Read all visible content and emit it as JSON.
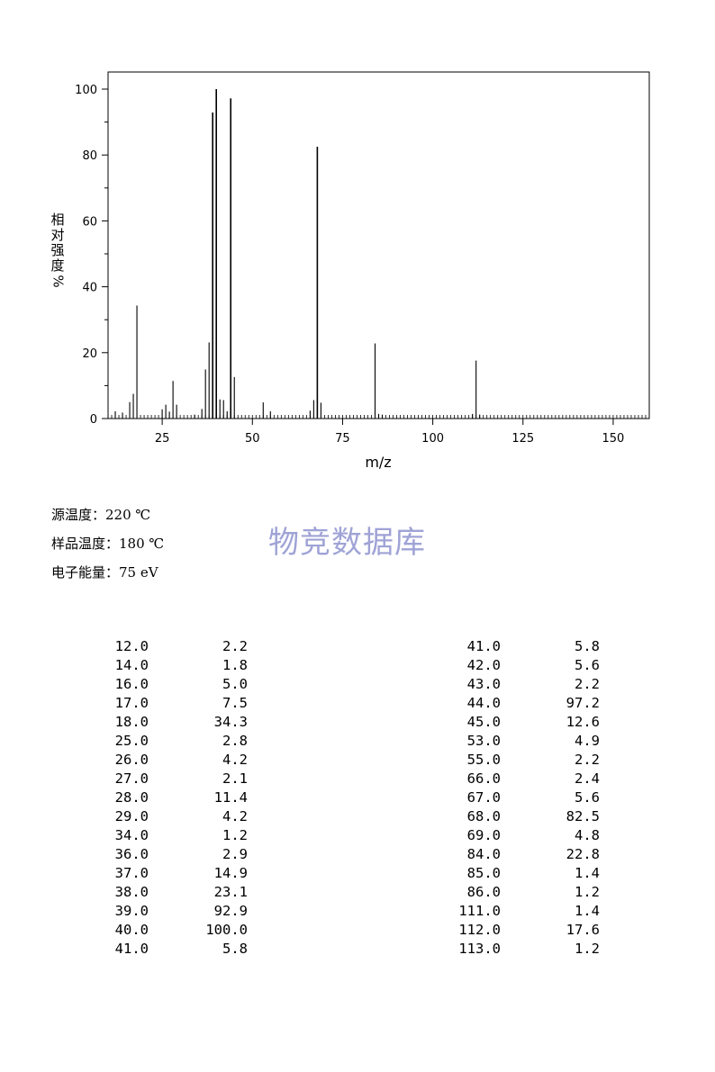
{
  "chart_data": {
    "type": "bar",
    "xlabel": "m/z",
    "ylabel_chars": [
      "相",
      "对",
      "强",
      "度"
    ],
    "ylabel_unit": "%",
    "xlim": [
      10,
      160
    ],
    "ylim": [
      0,
      105
    ],
    "xticks": [
      25,
      50,
      75,
      100,
      125,
      150
    ],
    "yticks": [
      0,
      20,
      40,
      60,
      80,
      100
    ],
    "peaks": [
      [
        12,
        2.2
      ],
      [
        14,
        1.8
      ],
      [
        16,
        5.0
      ],
      [
        17,
        7.5
      ],
      [
        18,
        34.3
      ],
      [
        25,
        2.8
      ],
      [
        26,
        4.2
      ],
      [
        27,
        2.1
      ],
      [
        28,
        11.4
      ],
      [
        29,
        4.2
      ],
      [
        34,
        1.2
      ],
      [
        36,
        2.9
      ],
      [
        37,
        14.9
      ],
      [
        38,
        23.1
      ],
      [
        39,
        92.9
      ],
      [
        40,
        100.0
      ],
      [
        41,
        5.8
      ],
      [
        42,
        5.6
      ],
      [
        43,
        2.2
      ],
      [
        44,
        97.2
      ],
      [
        45,
        12.6
      ],
      [
        53,
        4.9
      ],
      [
        55,
        2.2
      ],
      [
        66,
        2.4
      ],
      [
        67,
        5.6
      ],
      [
        68,
        82.5
      ],
      [
        69,
        4.8
      ],
      [
        84,
        22.8
      ],
      [
        85,
        1.4
      ],
      [
        86,
        1.2
      ],
      [
        111,
        1.4
      ],
      [
        112,
        17.6
      ],
      [
        113,
        1.2
      ]
    ]
  },
  "conditions": {
    "source_temp": "源温度：220 ℃",
    "sample_temp": "样品温度：180 ℃",
    "electron_energy": "电子能量：75 eV"
  },
  "watermark": "物竞数据库",
  "table_left": [
    [
      "12.0",
      "2.2"
    ],
    [
      "14.0",
      "1.8"
    ],
    [
      "16.0",
      "5.0"
    ],
    [
      "17.0",
      "7.5"
    ],
    [
      "18.0",
      "34.3"
    ],
    [
      "25.0",
      "2.8"
    ],
    [
      "26.0",
      "4.2"
    ],
    [
      "27.0",
      "2.1"
    ],
    [
      "28.0",
      "11.4"
    ],
    [
      "29.0",
      "4.2"
    ],
    [
      "34.0",
      "1.2"
    ],
    [
      "36.0",
      "2.9"
    ],
    [
      "37.0",
      "14.9"
    ],
    [
      "38.0",
      "23.1"
    ],
    [
      "39.0",
      "92.9"
    ],
    [
      "40.0",
      "100.0"
    ],
    [
      "41.0",
      "5.8"
    ]
  ],
  "table_right": [
    [
      "41.0",
      "5.8"
    ],
    [
      "42.0",
      "5.6"
    ],
    [
      "43.0",
      "2.2"
    ],
    [
      "44.0",
      "97.2"
    ],
    [
      "45.0",
      "12.6"
    ],
    [
      "53.0",
      "4.9"
    ],
    [
      "55.0",
      "2.2"
    ],
    [
      "66.0",
      "2.4"
    ],
    [
      "67.0",
      "5.6"
    ],
    [
      "68.0",
      "82.5"
    ],
    [
      "69.0",
      "4.8"
    ],
    [
      "84.0",
      "22.8"
    ],
    [
      "85.0",
      "1.4"
    ],
    [
      "86.0",
      "1.2"
    ],
    [
      "111.0",
      "1.4"
    ],
    [
      "112.0",
      "17.6"
    ],
    [
      "113.0",
      "1.2"
    ]
  ]
}
